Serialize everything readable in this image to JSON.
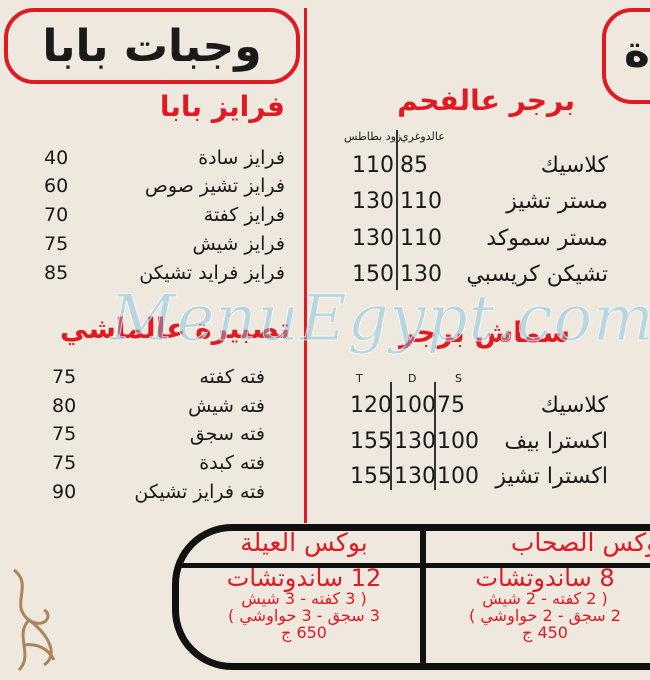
{
  "header": {
    "title": "وجبات بابا",
    "partial_title": "ة"
  },
  "fries": {
    "title": "فرايز بابا",
    "items": [
      {
        "name": "فرايز سادة",
        "price": "40"
      },
      {
        "name": "فرايز تشيز صوص",
        "price": "60"
      },
      {
        "name": "فرايز كفتة",
        "price": "70"
      },
      {
        "name": "فرايز شيش",
        "price": "75"
      },
      {
        "name": "فرايز فرايد تشيكن",
        "price": "85"
      }
    ]
  },
  "tasbeera": {
    "title": "تصبيرة عالماشي",
    "items": [
      {
        "name": "فته كفته",
        "price": "75"
      },
      {
        "name": "فته شيش",
        "price": "80"
      },
      {
        "name": "فته سجق",
        "price": "75"
      },
      {
        "name": "فته كبدة",
        "price": "75"
      },
      {
        "name": "فته فرايز تشيكن",
        "price": "90"
      }
    ]
  },
  "charcoal_burger": {
    "title": "برجر عالفحم",
    "col1": "عالدوغري",
    "col2": "زود بطاطس",
    "items": [
      {
        "name": "كلاسيك",
        "p1": "85",
        "p2": "110"
      },
      {
        "name": "مستر تشيز",
        "p1": "110",
        "p2": "130"
      },
      {
        "name": "مستر سموكد",
        "p1": "110",
        "p2": "130"
      },
      {
        "name": "تشيكن كريسبي",
        "p1": "130",
        "p2": "150"
      }
    ]
  },
  "smash_burger": {
    "title": "سماش برجر",
    "col1": "S",
    "col2": "D",
    "col3": "T",
    "items": [
      {
        "name": "كلاسيك",
        "p1": "75",
        "p2": "100",
        "p3": "120"
      },
      {
        "name": "اكسترا بيف",
        "p1": "100",
        "p2": "130",
        "p3": "155"
      },
      {
        "name": "اكسترا تشيز",
        "p1": "100",
        "p2": "130",
        "p3": "155"
      }
    ]
  },
  "boxes": [
    {
      "title": "بوكس الصحاب",
      "count": "8 ساندوتشات",
      "line1": "( 2 كفته - 2 شيش",
      "line2": "2 سجق - 2 حواوشي )",
      "price": "450 ج"
    },
    {
      "title": "بوكس العيلة",
      "count": "12 ساندوتشات",
      "line1": "( 3 كفته - 3 شيش",
      "line2": "3 سجق - 3 حواوشي )",
      "price": "650 ج"
    }
  ],
  "watermark": "MenuEgypt.com",
  "colors": {
    "accent": "#e01a22",
    "background": "#eee8de",
    "text": "#1a1a1a"
  }
}
